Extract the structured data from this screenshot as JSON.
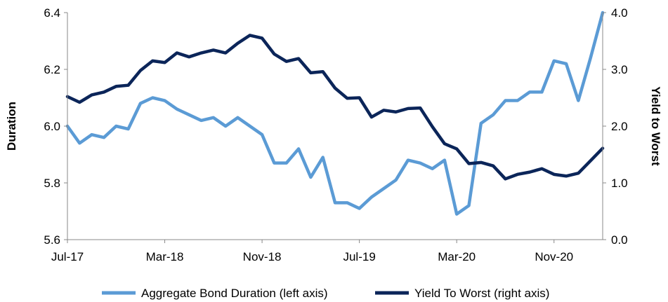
{
  "chart_data": {
    "type": "line",
    "x": [
      "Jul-17",
      "Aug-17",
      "Sep-17",
      "Oct-17",
      "Nov-17",
      "Dec-17",
      "Jan-18",
      "Feb-18",
      "Mar-18",
      "Apr-18",
      "May-18",
      "Jun-18",
      "Jul-18",
      "Aug-18",
      "Sep-18",
      "Oct-18",
      "Nov-18",
      "Dec-18",
      "Jan-19",
      "Feb-19",
      "Mar-19",
      "Apr-19",
      "May-19",
      "Jun-19",
      "Jul-19",
      "Aug-19",
      "Sep-19",
      "Oct-19",
      "Nov-19",
      "Dec-19",
      "Jan-20",
      "Feb-20",
      "Mar-20",
      "Apr-20",
      "May-20",
      "Jun-20",
      "Jul-20",
      "Aug-20",
      "Sep-20",
      "Oct-20",
      "Nov-20",
      "Dec-20",
      "Jan-21",
      "Feb-21",
      "Mar-21"
    ],
    "x_tick_labels": [
      "Jul-17",
      "Mar-18",
      "Nov-18",
      "Jul-19",
      "Mar-20",
      "Nov-20"
    ],
    "x_tick_indices": [
      0,
      8,
      16,
      24,
      32,
      40
    ],
    "ylabel": "Duration",
    "y2label": "Yield to Worst",
    "ylim": [
      5.6,
      6.4
    ],
    "y2lim": [
      0.0,
      4.0
    ],
    "yticks": [
      "5.6",
      "5.8",
      "6.0",
      "6.2",
      "6.4"
    ],
    "y2ticks": [
      "0.0",
      "1.0",
      "2.0",
      "3.0",
      "4.0"
    ],
    "legend_position": "bottom",
    "series": [
      {
        "name": "Aggregate Bond Duration (left axis)",
        "axis": "left",
        "color": "#5B9BD5",
        "values": [
          6.0,
          5.94,
          5.97,
          5.96,
          6.0,
          5.99,
          6.08,
          6.1,
          6.09,
          6.06,
          6.04,
          6.02,
          6.03,
          6.0,
          6.03,
          6.0,
          5.97,
          5.87,
          5.87,
          5.92,
          5.82,
          5.89,
          5.73,
          5.73,
          5.71,
          5.75,
          5.78,
          5.81,
          5.88,
          5.87,
          5.85,
          5.88,
          5.69,
          5.72,
          6.01,
          6.04,
          6.09,
          6.09,
          6.12,
          6.12,
          6.23,
          6.22,
          6.09,
          6.24,
          6.4
        ]
      },
      {
        "name": "Yield To Worst (right axis)",
        "axis": "right",
        "color": "#0B2559",
        "values": [
          2.52,
          2.42,
          2.55,
          2.6,
          2.7,
          2.72,
          2.98,
          3.15,
          3.12,
          3.29,
          3.22,
          3.29,
          3.34,
          3.29,
          3.46,
          3.6,
          3.55,
          3.27,
          3.14,
          3.19,
          2.94,
          2.96,
          2.67,
          2.49,
          2.5,
          2.16,
          2.28,
          2.25,
          2.31,
          2.32,
          1.99,
          1.69,
          1.6,
          1.34,
          1.36,
          1.3,
          1.07,
          1.15,
          1.19,
          1.25,
          1.15,
          1.12,
          1.17,
          1.39,
          1.61
        ]
      }
    ]
  }
}
